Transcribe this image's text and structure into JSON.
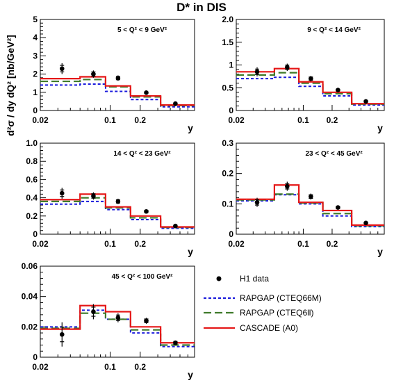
{
  "figure_title": "D* in DIS",
  "ylabel": "d²σ / dy dQ² [nb/GeV²]",
  "xlabel": "y",
  "xticks": [
    "0.02",
    "0.1",
    "0.2"
  ],
  "legend": [
    {
      "label": "H1 data",
      "style": "points",
      "color": "#000000"
    },
    {
      "label": "RAPGAP (CTEQ66M)",
      "style": "dotted",
      "color": "#1a1adc"
    },
    {
      "label": "RAPGAP (CTEQ6ll)",
      "style": "dashed",
      "color": "#3f7a2a"
    },
    {
      "label": "CASCADE (A0)",
      "style": "solid",
      "color": "#e51818"
    }
  ],
  "chart_data": [
    {
      "type": "line",
      "title": "5 < Q² < 9 GeV²",
      "xlabel": "y",
      "ylim": [
        0,
        5
      ],
      "yticks": [
        "0",
        "1",
        "2",
        "3",
        "4",
        "5"
      ],
      "bins": [
        [
          0.02,
          0.05
        ],
        [
          0.05,
          0.09
        ],
        [
          0.09,
          0.16
        ],
        [
          0.16,
          0.32
        ],
        [
          0.32,
          0.7
        ]
      ],
      "data": {
        "x": [
          0.033,
          0.068,
          0.12,
          0.23,
          0.45
        ],
        "y": [
          2.3,
          2.0,
          1.78,
          0.98,
          0.38
        ],
        "err": [
          0.3,
          0.2,
          0.15,
          0.07,
          0.05
        ]
      },
      "series": [
        {
          "name": "RAPGAP (CTEQ66M)",
          "values": [
            1.4,
            1.45,
            1.05,
            0.6,
            0.2
          ]
        },
        {
          "name": "RAPGAP (CTEQ6ll)",
          "values": [
            1.6,
            1.7,
            1.3,
            0.75,
            0.27
          ]
        },
        {
          "name": "CASCADE (A0)",
          "values": [
            1.75,
            1.85,
            1.35,
            0.8,
            0.3
          ]
        }
      ]
    },
    {
      "type": "line",
      "title": "9 < Q² < 14 GeV²",
      "xlabel": "y",
      "ylim": [
        0,
        2
      ],
      "yticks": [
        "0",
        "0.5",
        "1",
        "1.5",
        "2.0"
      ],
      "bins": [
        [
          0.02,
          0.05
        ],
        [
          0.05,
          0.09
        ],
        [
          0.09,
          0.16
        ],
        [
          0.16,
          0.32
        ],
        [
          0.32,
          0.7
        ]
      ],
      "data": {
        "x": [
          0.033,
          0.068,
          0.12,
          0.23,
          0.45
        ],
        "y": [
          0.85,
          0.95,
          0.7,
          0.45,
          0.2
        ],
        "err": [
          0.1,
          0.08,
          0.06,
          0.03,
          0.03
        ]
      },
      "series": [
        {
          "name": "RAPGAP (CTEQ66M)",
          "values": [
            0.7,
            0.73,
            0.53,
            0.32,
            0.12
          ]
        },
        {
          "name": "RAPGAP (CTEQ6ll)",
          "values": [
            0.78,
            0.83,
            0.6,
            0.37,
            0.14
          ]
        },
        {
          "name": "CASCADE (A0)",
          "values": [
            0.85,
            0.92,
            0.63,
            0.4,
            0.15
          ]
        }
      ]
    },
    {
      "type": "line",
      "title": "14 < Q² < 23 GeV²",
      "xlabel": "y",
      "ylim": [
        0,
        1
      ],
      "yticks": [
        "0",
        "0.2",
        "0.4",
        "0.6",
        "0.8",
        "1.0"
      ],
      "bins": [
        [
          0.02,
          0.05
        ],
        [
          0.05,
          0.09
        ],
        [
          0.09,
          0.16
        ],
        [
          0.16,
          0.32
        ],
        [
          0.32,
          0.7
        ]
      ],
      "data": {
        "x": [
          0.033,
          0.068,
          0.12,
          0.23,
          0.45
        ],
        "y": [
          0.45,
          0.42,
          0.36,
          0.25,
          0.09
        ],
        "err": [
          0.06,
          0.04,
          0.03,
          0.02,
          0.015
        ]
      },
      "series": [
        {
          "name": "RAPGAP (CTEQ66M)",
          "values": [
            0.33,
            0.36,
            0.27,
            0.16,
            0.065
          ]
        },
        {
          "name": "RAPGAP (CTEQ6ll)",
          "values": [
            0.36,
            0.4,
            0.29,
            0.18,
            0.075
          ]
        },
        {
          "name": "CASCADE (A0)",
          "values": [
            0.38,
            0.44,
            0.3,
            0.2,
            0.08
          ]
        }
      ]
    },
    {
      "type": "line",
      "title": "23 < Q² < 45 GeV²",
      "xlabel": "y",
      "ylim": [
        0,
        0.3
      ],
      "yticks": [
        "0",
        "0.1",
        "0.2",
        "0.3"
      ],
      "bins": [
        [
          0.02,
          0.05
        ],
        [
          0.05,
          0.09
        ],
        [
          0.09,
          0.16
        ],
        [
          0.16,
          0.32
        ],
        [
          0.32,
          0.7
        ]
      ],
      "data": {
        "x": [
          0.033,
          0.068,
          0.12,
          0.23,
          0.45
        ],
        "y": [
          0.105,
          0.158,
          0.124,
          0.088,
          0.037
        ],
        "err": [
          0.015,
          0.015,
          0.01,
          0.006,
          0.004
        ]
      },
      "series": [
        {
          "name": "RAPGAP (CTEQ66M)",
          "values": [
            0.11,
            0.13,
            0.1,
            0.06,
            0.025
          ]
        },
        {
          "name": "RAPGAP (CTEQ6ll)",
          "values": [
            0.113,
            0.132,
            0.103,
            0.068,
            0.028
          ]
        },
        {
          "name": "CASCADE (A0)",
          "values": [
            0.115,
            0.162,
            0.105,
            0.078,
            0.03
          ]
        }
      ]
    },
    {
      "type": "line",
      "title": "45 < Q² < 100 GeV²",
      "xlabel": "y",
      "ylim": [
        0,
        0.06
      ],
      "yticks": [
        "0",
        "0.02",
        "0.04",
        "0.06"
      ],
      "bins": [
        [
          0.02,
          0.05
        ],
        [
          0.05,
          0.09
        ],
        [
          0.09,
          0.16
        ],
        [
          0.16,
          0.32
        ],
        [
          0.32,
          0.7
        ]
      ],
      "data": {
        "x": [
          0.033,
          0.068,
          0.12,
          0.23,
          0.45
        ],
        "y": [
          0.015,
          0.03,
          0.026,
          0.024,
          0.0095
        ],
        "err": [
          0.008,
          0.005,
          0.003,
          0.002,
          0.0015
        ]
      },
      "series": [
        {
          "name": "RAPGAP (CTEQ66M)",
          "values": [
            0.02,
            0.031,
            0.025,
            0.016,
            0.007
          ]
        },
        {
          "name": "RAPGAP (CTEQ6ll)",
          "values": [
            0.019,
            0.029,
            0.025,
            0.018,
            0.008
          ]
        },
        {
          "name": "CASCADE (A0)",
          "values": [
            0.0185,
            0.034,
            0.03,
            0.02,
            0.0095
          ]
        }
      ]
    }
  ]
}
